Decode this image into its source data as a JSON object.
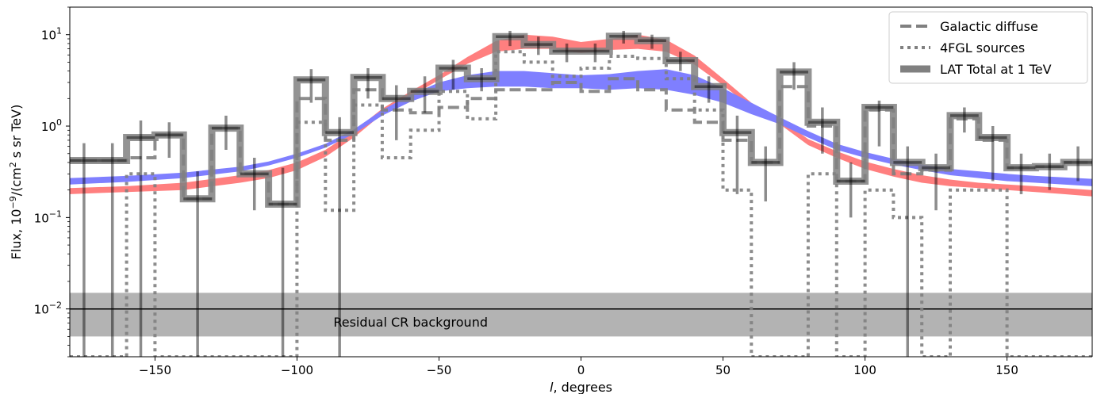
{
  "chart_data": {
    "type": "line",
    "title": "",
    "xlabel": "l, degrees",
    "ylabel": "Flux, 10^-9/(cm^2 s sr TeV)",
    "ylabel_parts": {
      "a": "Flux, 10",
      "exp1": "−9",
      "b": "/(cm",
      "exp2": "2",
      "c": " s sr TeV)"
    },
    "xlim": [
      -180,
      180
    ],
    "ylim": [
      0.003,
      20
    ],
    "yscale": "log",
    "grid": false,
    "legend_position": "top-right",
    "x_ticks": [
      -150,
      -100,
      -50,
      0,
      50,
      100,
      150
    ],
    "x_tick_labels": [
      "−150",
      "−100",
      "−50",
      "0",
      "50",
      "100",
      "150"
    ],
    "y_ticks": [
      0.01,
      0.1,
      1,
      10
    ],
    "y_tick_labels": [
      {
        "base": "10",
        "exp": "−2"
      },
      {
        "base": "10",
        "exp": "−1"
      },
      {
        "base": "10",
        "exp": "0"
      },
      {
        "base": "10",
        "exp": "1"
      }
    ],
    "legend": [
      {
        "label": "Galactic diffuse",
        "style": "dashed"
      },
      {
        "label": "4FGL sources",
        "style": "dotted"
      },
      {
        "label": "LAT Total at 1 TeV",
        "style": "thick"
      }
    ],
    "bin_edges": [
      -180,
      -170,
      -160,
      -150,
      -140,
      -130,
      -120,
      -110,
      -100,
      -90,
      -80,
      -70,
      -60,
      -50,
      -40,
      -30,
      -20,
      -10,
      0,
      10,
      20,
      30,
      40,
      50,
      60,
      70,
      80,
      90,
      100,
      110,
      120,
      130,
      140,
      150,
      160,
      170,
      180
    ],
    "series": [
      {
        "name": "LAT Total at 1 TeV",
        "color": "#808080",
        "values": [
          0.42,
          0.42,
          0.75,
          0.8,
          0.16,
          0.95,
          0.3,
          0.14,
          3.2,
          0.85,
          3.4,
          2.0,
          2.4,
          4.3,
          3.3,
          9.5,
          7.8,
          6.6,
          6.6,
          9.6,
          8.6,
          5.2,
          2.7,
          0.85,
          0.4,
          3.9,
          1.1,
          0.25,
          1.6,
          0.4,
          0.35,
          1.3,
          0.75,
          0.35,
          0.36,
          0.4
        ]
      },
      {
        "name": "Galactic diffuse",
        "color": "#808080",
        "values": [
          0.42,
          0.42,
          0.45,
          0.8,
          0.16,
          0.95,
          0.3,
          0.14,
          2.0,
          0.7,
          2.5,
          1.5,
          1.4,
          1.6,
          2.0,
          2.5,
          2.5,
          3.0,
          2.4,
          3.3,
          2.5,
          1.5,
          1.1,
          0.7,
          0.4,
          2.7,
          1.0,
          0.25,
          1.5,
          0.3,
          0.33,
          1.2,
          0.7,
          0.35,
          0.36,
          0.4
        ]
      },
      {
        "name": "4FGL sources",
        "color": "#808080",
        "values": [
          0.003,
          0.003,
          0.3,
          0.003,
          0.003,
          0.003,
          0.003,
          0.003,
          1.1,
          0.12,
          1.7,
          0.45,
          0.9,
          2.4,
          1.2,
          6.5,
          5.0,
          3.5,
          4.3,
          5.8,
          5.5,
          3.3,
          1.5,
          0.2,
          0.003,
          0.003,
          0.3,
          0.003,
          0.2,
          0.1,
          0.003,
          0.2,
          0.2,
          0.003,
          0.003,
          0.003
        ]
      }
    ],
    "data_points": {
      "x": [
        -175,
        -165,
        -155,
        -145,
        -135,
        -125,
        -115,
        -105,
        -95,
        -85,
        -75,
        -65,
        -55,
        -45,
        -35,
        -25,
        -15,
        -5,
        5,
        15,
        25,
        35,
        45,
        55,
        65,
        75,
        85,
        95,
        105,
        115,
        125,
        135,
        145,
        155,
        165,
        175
      ],
      "y": [
        0.42,
        0.42,
        0.75,
        0.8,
        0.16,
        0.95,
        0.3,
        0.14,
        3.2,
        0.85,
        3.4,
        2.0,
        2.4,
        4.3,
        3.3,
        9.5,
        7.8,
        6.6,
        6.6,
        9.6,
        8.6,
        5.2,
        2.7,
        0.85,
        0.4,
        3.9,
        1.1,
        0.25,
        1.6,
        0.4,
        0.35,
        1.3,
        0.75,
        0.35,
        0.36,
        0.4
      ],
      "y_low": [
        0.003,
        0.003,
        0.003,
        0.45,
        0.003,
        0.55,
        0.12,
        0.003,
        1.8,
        0.003,
        2.0,
        0.7,
        1.4,
        2.5,
        2.4,
        7.5,
        6.0,
        5.0,
        5.0,
        8.0,
        7.0,
        4.0,
        1.8,
        0.18,
        0.15,
        2.5,
        0.5,
        0.1,
        0.6,
        0.003,
        0.12,
        0.85,
        0.25,
        0.18,
        0.2,
        0.25
      ],
      "y_high": [
        0.65,
        0.65,
        1.15,
        1.1,
        0.32,
        1.3,
        0.45,
        0.35,
        4.2,
        1.25,
        4.3,
        2.8,
        3.5,
        5.3,
        4.3,
        11.0,
        9.5,
        8.0,
        8.0,
        11.0,
        10.0,
        6.5,
        3.5,
        1.3,
        0.6,
        5.0,
        1.6,
        0.4,
        1.9,
        0.6,
        0.5,
        1.6,
        1.0,
        0.5,
        0.5,
        0.6
      ]
    },
    "model_bands": [
      {
        "name": "",
        "color": "#ff7f7f",
        "x": [
          -180,
          -160,
          -140,
          -120,
          -110,
          -100,
          -90,
          -80,
          -70,
          -60,
          -50,
          -40,
          -30,
          -20,
          -10,
          0,
          10,
          20,
          30,
          40,
          50,
          60,
          70,
          80,
          90,
          100,
          110,
          120,
          130,
          140,
          150,
          160,
          170,
          180
        ],
        "low": [
          0.18,
          0.19,
          0.2,
          0.24,
          0.27,
          0.33,
          0.46,
          0.75,
          1.35,
          2.1,
          3.2,
          4.8,
          6.5,
          7.0,
          7.0,
          6.3,
          6.8,
          7.0,
          6.5,
          4.7,
          2.8,
          1.6,
          1.05,
          0.62,
          0.45,
          0.34,
          0.28,
          0.24,
          0.22,
          0.21,
          0.2,
          0.19,
          0.18,
          0.17
        ],
        "high": [
          0.21,
          0.22,
          0.24,
          0.29,
          0.33,
          0.4,
          0.55,
          0.88,
          1.55,
          2.4,
          3.6,
          5.7,
          8.5,
          10.0,
          9.5,
          8.3,
          9.0,
          10.0,
          8.8,
          5.9,
          3.3,
          1.8,
          1.2,
          0.72,
          0.53,
          0.41,
          0.34,
          0.29,
          0.26,
          0.24,
          0.23,
          0.22,
          0.21,
          0.2
        ]
      },
      {
        "name": "",
        "color": "#7f7fff",
        "x": [
          -180,
          -160,
          -140,
          -120,
          -110,
          -100,
          -90,
          -80,
          -70,
          -60,
          -50,
          -40,
          -30,
          -20,
          -10,
          0,
          10,
          20,
          30,
          40,
          50,
          60,
          70,
          80,
          90,
          100,
          110,
          120,
          130,
          140,
          150,
          160,
          170,
          180
        ],
        "low": [
          0.23,
          0.245,
          0.27,
          0.32,
          0.37,
          0.45,
          0.58,
          0.82,
          1.3,
          1.85,
          2.4,
          2.6,
          2.7,
          2.7,
          2.6,
          2.6,
          2.5,
          2.6,
          2.5,
          2.2,
          1.8,
          1.35,
          1.05,
          0.75,
          0.55,
          0.45,
          0.38,
          0.33,
          0.29,
          0.27,
          0.25,
          0.24,
          0.23,
          0.22
        ],
        "high": [
          0.27,
          0.285,
          0.31,
          0.36,
          0.41,
          0.5,
          0.64,
          0.92,
          1.5,
          2.2,
          3.0,
          3.6,
          4.0,
          4.0,
          3.8,
          3.6,
          3.7,
          4.0,
          4.2,
          3.6,
          2.6,
          1.8,
          1.25,
          0.88,
          0.64,
          0.52,
          0.44,
          0.38,
          0.34,
          0.32,
          0.3,
          0.285,
          0.275,
          0.265
        ]
      }
    ],
    "background_band": {
      "label": "Residual CR background",
      "level": 0.01,
      "low": 0.005,
      "high": 0.015,
      "color": "#b3b3b3"
    }
  }
}
